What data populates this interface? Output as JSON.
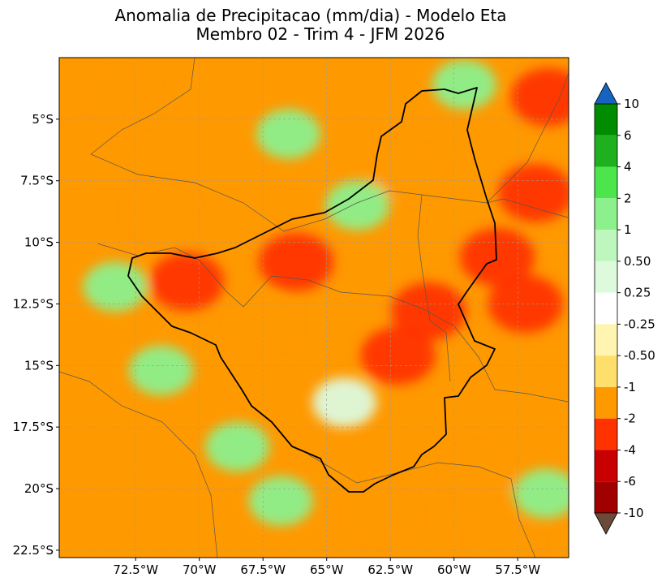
{
  "title": {
    "line1": "Anomalia de Precipitacao (mm/dia) - Modelo Eta",
    "line2": "Membro 02 - Trim 4 - JFM 2026"
  },
  "chart_data": {
    "type": "heatmap",
    "title": "Anomalia de Precipitacao (mm/dia) - Modelo Eta",
    "subtitle": "Membro 02 - Trim 4 - JFM 2026",
    "xlabel": "",
    "ylabel": "",
    "xlim": [
      -75.5,
      -55.5
    ],
    "ylim": [
      -22.8,
      -2.5
    ],
    "x_ticks": [
      {
        "value": -72.5,
        "label": "72.5°W"
      },
      {
        "value": -70,
        "label": "70°W"
      },
      {
        "value": -67.5,
        "label": "67.5°W"
      },
      {
        "value": -65,
        "label": "65°W"
      },
      {
        "value": -62.5,
        "label": "62.5°W"
      },
      {
        "value": -60,
        "label": "60°W"
      },
      {
        "value": -57.5,
        "label": "57.5°W"
      }
    ],
    "y_ticks": [
      {
        "value": -5,
        "label": "5°S"
      },
      {
        "value": -7.5,
        "label": "7.5°S"
      },
      {
        "value": -10,
        "label": "10°S"
      },
      {
        "value": -12.5,
        "label": "12.5°S"
      },
      {
        "value": -15,
        "label": "15°S"
      },
      {
        "value": -17.5,
        "label": "17.5°S"
      },
      {
        "value": -20,
        "label": "20°S"
      },
      {
        "value": -22.5,
        "label": "22.5°S"
      }
    ],
    "grid": true,
    "colorbar": {
      "position": "right",
      "levels": [
        "10",
        "6",
        "4",
        "2",
        "1",
        "0.50",
        "0.25",
        "-0.25",
        "-0.50",
        "-1",
        "-2",
        "-4",
        "-6",
        "-10"
      ],
      "bins": [
        {
          "from": 6,
          "to": 10,
          "color": "#008c00"
        },
        {
          "from": 4,
          "to": 6,
          "color": "#1fb01f"
        },
        {
          "from": 2,
          "to": 4,
          "color": "#4ce64c"
        },
        {
          "from": 1,
          "to": 2,
          "color": "#8cf08c"
        },
        {
          "from": 0.5,
          "to": 1,
          "color": "#bdf7bd"
        },
        {
          "from": 0.25,
          "to": 0.5,
          "color": "#ddfadd"
        },
        {
          "from": -0.25,
          "to": 0.25,
          "color": "#ffffff"
        },
        {
          "from": -0.5,
          "to": -0.25,
          "color": "#fff5b0"
        },
        {
          "from": -1,
          "to": -0.5,
          "color": "#ffdf6b"
        },
        {
          "from": -2,
          "to": -1,
          "color": "#ff9900"
        },
        {
          "from": -4,
          "to": -2,
          "color": "#ff3300"
        },
        {
          "from": -6,
          "to": -4,
          "color": "#c80000"
        },
        {
          "from": -10,
          "to": -6,
          "color": "#a00000"
        }
      ],
      "over_color": "#1565c0",
      "under_color": "#6b4a3a"
    },
    "anomaly_regions": [
      {
        "lon": -70.5,
        "lat": -11.6,
        "value": -3
      },
      {
        "lon": -66.2,
        "lat": -10.8,
        "value": -3
      },
      {
        "lon": -61.0,
        "lat": -12.8,
        "value": -3
      },
      {
        "lon": -62.2,
        "lat": -14.6,
        "value": -3
      },
      {
        "lon": -57.2,
        "lat": -12.5,
        "value": -3
      },
      {
        "lon": -58.3,
        "lat": -10.6,
        "value": -3
      },
      {
        "lon": -56.8,
        "lat": -8.0,
        "value": -3
      },
      {
        "lon": -56.3,
        "lat": -4.1,
        "value": -3
      },
      {
        "lon": -62.0,
        "lat": -7.2,
        "value": -1.5
      },
      {
        "lon": -67.5,
        "lat": -13.2,
        "value": -1.5
      },
      {
        "lon": -59.0,
        "lat": -19.5,
        "value": -1.5
      },
      {
        "lon": -62.8,
        "lat": -21.0,
        "value": -1.5
      },
      {
        "lon": -73.0,
        "lat": -4.2,
        "value": -1.5
      },
      {
        "lon": -71.5,
        "lat": -8.7,
        "value": -1.5
      },
      {
        "lon": -58.0,
        "lat": -22.3,
        "value": -1.5
      },
      {
        "lon": -73.3,
        "lat": -11.8,
        "value": 1.5
      },
      {
        "lon": -71.5,
        "lat": -15.2,
        "value": 1.5
      },
      {
        "lon": -68.5,
        "lat": -18.3,
        "value": 1.5
      },
      {
        "lon": -66.5,
        "lat": -5.6,
        "value": 1.5
      },
      {
        "lon": -63.8,
        "lat": -8.5,
        "value": 1.5
      },
      {
        "lon": -59.6,
        "lat": -3.6,
        "value": 1.5
      },
      {
        "lon": -56.4,
        "lat": -20.2,
        "value": 1.5
      },
      {
        "lon": -66.8,
        "lat": -20.5,
        "value": 1.5
      },
      {
        "lon": -64.3,
        "lat": -16.5,
        "value": 0.4
      }
    ],
    "annotations": []
  }
}
